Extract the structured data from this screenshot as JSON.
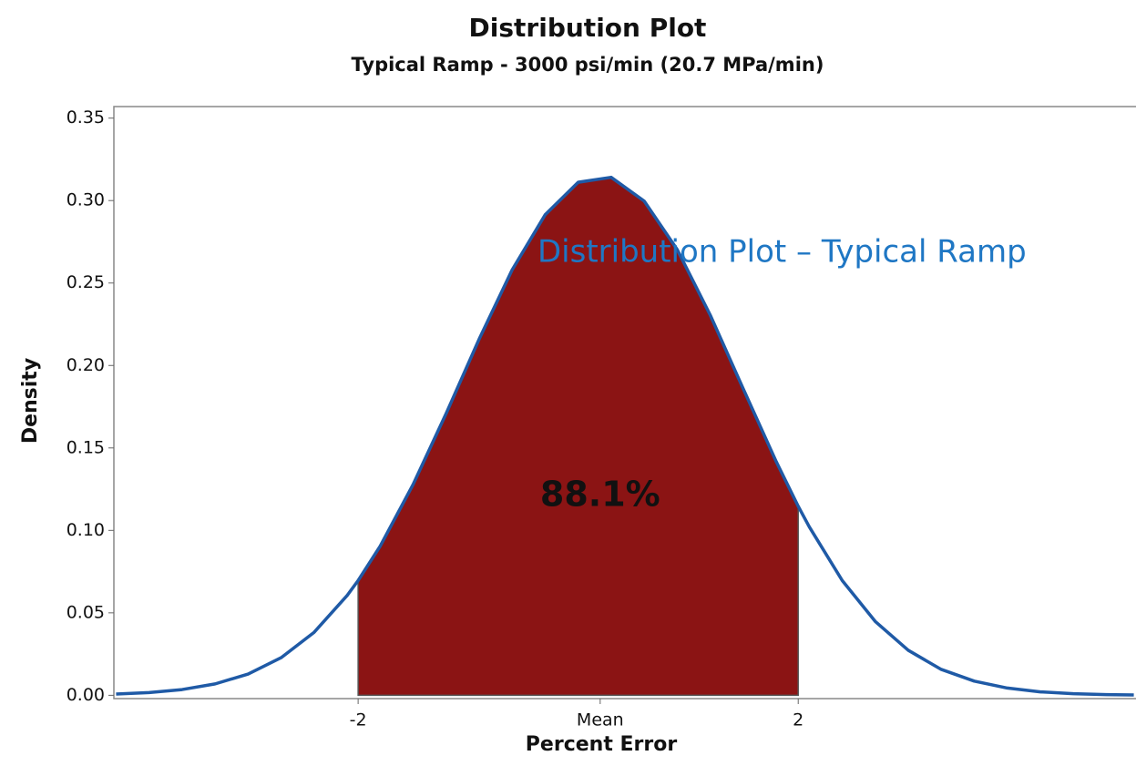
{
  "chart_data": {
    "type": "density",
    "title": "Distribution Plot",
    "subtitle": "Typical Ramp - 3000 psi/min (20.7 MPa/min)",
    "x_label": "Percent Error",
    "y_label": "Density",
    "annotation": "Distribution Plot – Typical Ramp",
    "color": "#1f5aa6",
    "x": [
      -4.2,
      -3.9,
      -3.6,
      -3.3,
      -3.0,
      -2.7,
      -2.4,
      -2.1,
      -2.0,
      -1.8,
      -1.5,
      -1.2,
      -0.9,
      -0.6,
      -0.3,
      0,
      0.3,
      0.6,
      0.9,
      1.2,
      1.5,
      1.8,
      2.0,
      2.1,
      2.4,
      2.7,
      3.0,
      3.3,
      3.6,
      3.9,
      4.2,
      4.5,
      4.8,
      5.05
    ],
    "values": [
      0.00075,
      0.00166,
      0.00348,
      0.0069,
      0.0129,
      0.0228,
      0.0382,
      0.0605,
      0.0696,
      0.0904,
      0.1279,
      0.1709,
      0.216,
      0.258,
      0.2914,
      0.3111,
      0.3141,
      0.2997,
      0.2703,
      0.2306,
      0.1859,
      0.1417,
      0.1146,
      0.1022,
      0.0696,
      0.0448,
      0.0273,
      0.0157,
      0.0086,
      0.0044,
      0.0021,
      0.00099,
      0.00043,
      0.0002
    ],
    "shaded": {
      "from": -2,
      "to": 2,
      "percent": 88.1,
      "label": "88.1%",
      "color": "#8b1414"
    },
    "xlim": [
      -4.22,
      5.07
    ],
    "ylim": [
      -0.002,
      0.357
    ],
    "xticks": [
      -2,
      {
        "value": 0.2,
        "label": "Mean"
      },
      2
    ],
    "yticks": [
      {
        "value": 0,
        "label": "0.00"
      },
      {
        "value": 0.05,
        "label": "0.05"
      },
      {
        "value": 0.1,
        "label": "0.10"
      },
      {
        "value": 0.15,
        "label": "0.15"
      },
      {
        "value": 0.2,
        "label": "0.20"
      },
      {
        "value": 0.25,
        "label": "0.25"
      },
      {
        "value": 0.3,
        "label": "0.30"
      },
      {
        "value": 0.35,
        "label": "0.35"
      }
    ]
  }
}
